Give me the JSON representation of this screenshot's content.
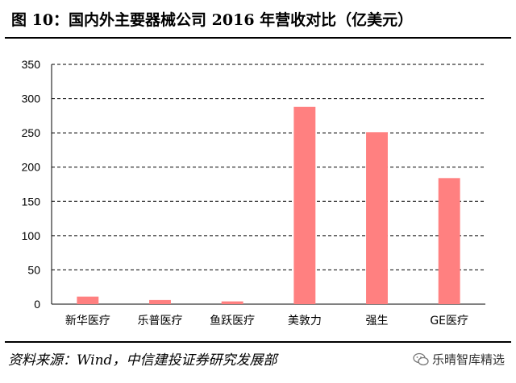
{
  "header": {
    "title": "图 10：国内外主要器械公司 2016 年营收对比（亿美元）"
  },
  "footer": {
    "source": "资料来源：Wind，中信建投证券研究发展部",
    "watermark": "乐晴智库精选",
    "watermark_icon": "wechat-icon"
  },
  "chart_data": {
    "type": "bar",
    "title": "",
    "xlabel": "",
    "ylabel": "",
    "categories": [
      "新华医疗",
      "乐普医疗",
      "鱼跃医疗",
      "美敦力",
      "强生",
      "GE医疗"
    ],
    "values": [
      11,
      6,
      4,
      288,
      251,
      184
    ],
    "ylim": [
      0,
      350
    ],
    "yticks": [
      0,
      50,
      100,
      150,
      200,
      250,
      300,
      350
    ],
    "grid": true,
    "grid_style": "dashed",
    "legend": false,
    "bar_color": "#ff8080"
  }
}
